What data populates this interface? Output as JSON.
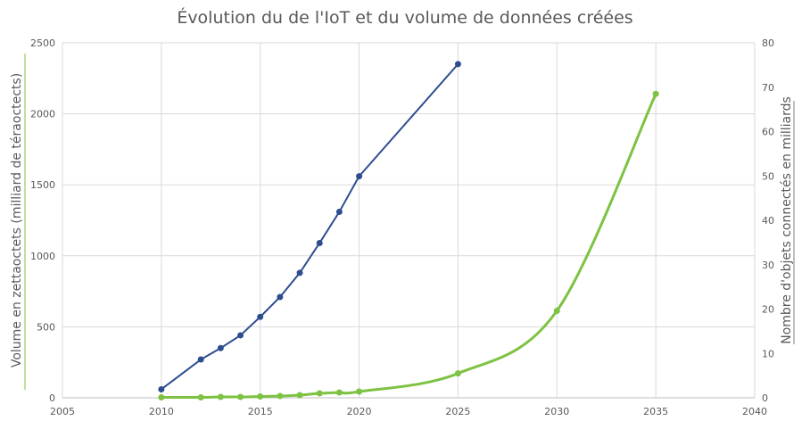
{
  "chart_data": {
    "type": "scatter",
    "title": "Évolution du de l'IoT et du volume de données créées",
    "xlabel": "",
    "ylabel": "Volume en zettaoctets (milliard de téraoctects)",
    "y2label": "Nombre d'objets connectés en milliards",
    "xlim": [
      2005,
      2040
    ],
    "ylim": [
      0,
      2500
    ],
    "y2lim": [
      0,
      80
    ],
    "x_ticks": [
      "2005",
      "2010",
      "2015",
      "2020",
      "2025",
      "2030",
      "2035",
      "2040"
    ],
    "y_ticks": [
      "0",
      "500",
      "1000",
      "1500",
      "2000",
      "2500"
    ],
    "y2_ticks": [
      "0",
      "10",
      "20",
      "30",
      "40",
      "50",
      "60",
      "70",
      "80"
    ],
    "grid": true,
    "series": [
      {
        "axis": "left",
        "color": "#2e4d8f",
        "smooth": false,
        "x": [
          2010,
          2012,
          2013,
          2014,
          2015,
          2016,
          2017,
          2018,
          2019,
          2020,
          2025
        ],
        "y": [
          60,
          270,
          350,
          440,
          570,
          710,
          880,
          1090,
          1310,
          1560,
          2350
        ]
      },
      {
        "axis": "right",
        "color": "#7dc242",
        "smooth": true,
        "x": [
          2010,
          2012,
          2013,
          2014,
          2015,
          2016,
          2017,
          2018,
          2019,
          2020,
          2025,
          2030,
          2035
        ],
        "y": [
          0.1,
          0.1,
          0.2,
          0.2,
          0.3,
          0.4,
          0.6,
          1.0,
          1.2,
          1.4,
          5.5,
          19.6,
          68.5
        ]
      }
    ]
  }
}
